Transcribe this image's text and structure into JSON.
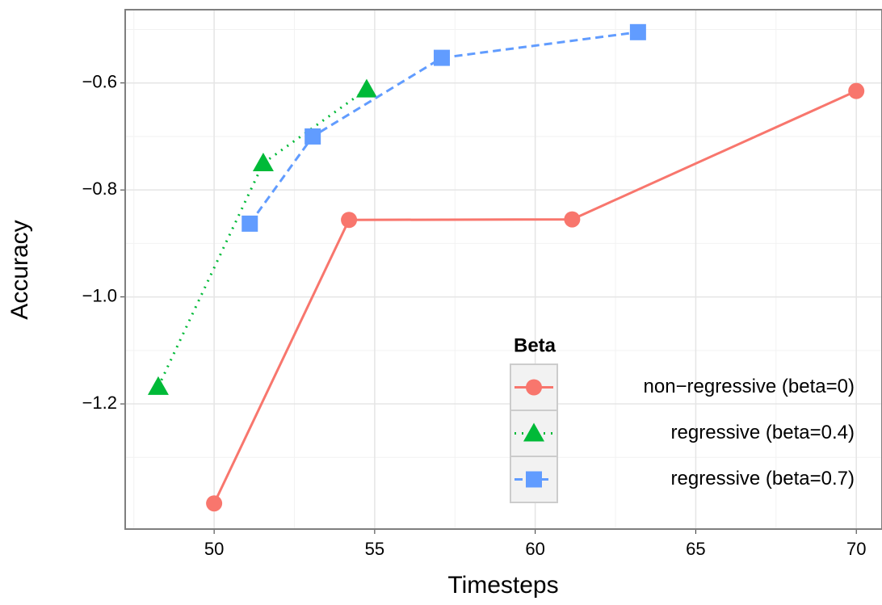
{
  "chart_data": {
    "type": "line",
    "x_label": "Timesteps",
    "y_label": "Accuracy",
    "xlim": [
      47.23,
      70.8
    ],
    "ylim": [
      -1.434,
      -0.463
    ],
    "xticks": [
      50,
      55,
      60,
      65,
      70
    ],
    "yticks": [
      {
        "value": -1.2,
        "label": "−1.2"
      },
      {
        "value": -1.0,
        "label": "−1.0"
      },
      {
        "value": -0.8,
        "label": "−0.8"
      },
      {
        "value": -0.6,
        "label": "−0.6"
      }
    ],
    "x_minor_ticks": [
      47.5,
      52.5,
      57.5,
      62.5,
      67.5
    ],
    "y_minor_ticks": [
      -1.3,
      -1.1,
      -0.9,
      -0.7,
      -0.5
    ],
    "grid": true,
    "legend_title": "Beta",
    "legend_position": "bottom-right",
    "series": [
      {
        "name": "non−regressive (beta=0)",
        "color": "#f8766d",
        "line_style": "solid",
        "marker": "circle",
        "x": [
          50,
          54.2,
          61.15,
          70
        ],
        "values": [
          -1.386,
          -0.856,
          -0.855,
          -0.615
        ]
      },
      {
        "name": "regressive (beta=0.4)",
        "color": "#00ba38",
        "line_style": "dotted",
        "marker": "triangle",
        "x": [
          48.26,
          51.53,
          54.75
        ],
        "values": [
          -1.168,
          -0.75,
          -0.612
        ]
      },
      {
        "name": "regressive (beta=0.7)",
        "color": "#619cff",
        "line_style": "dashed",
        "marker": "square",
        "x": [
          51.11,
          53.07,
          57.09,
          63.2
        ],
        "values": [
          -0.863,
          -0.7,
          -0.553,
          -0.505
        ]
      }
    ]
  }
}
